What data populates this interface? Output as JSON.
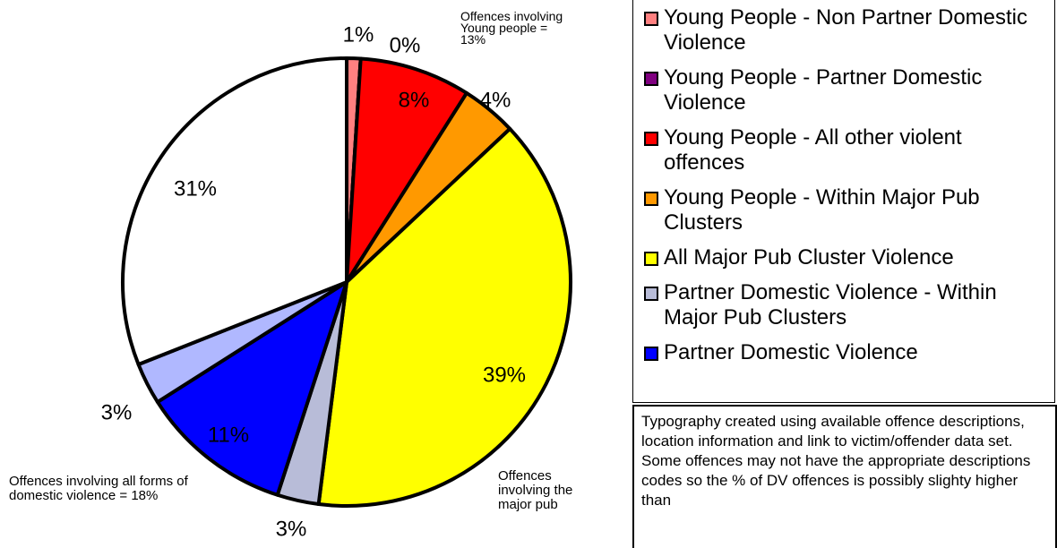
{
  "chart_data": {
    "type": "pie",
    "categories": [
      "Young People - Non Partner Domestic Violence",
      "Young People - Partner Domestic Violence",
      "Young People - All other violent offences",
      "Young People - Within Major Pub Clusters",
      "All Major Pub Cluster Violence",
      "Partner Domestic Violence - Within Major Pub Clusters",
      "Partner Domestic Violence",
      null,
      null
    ],
    "values": [
      1,
      0,
      8,
      4,
      39,
      3,
      11,
      3,
      31
    ],
    "value_labels": [
      "1%",
      "0%",
      "8%",
      "4%",
      "39%",
      "3%",
      "11%",
      "3%",
      "31%"
    ],
    "colors": [
      "#ff8080",
      "#800080",
      "#ff0000",
      "#ff9900",
      "#ffff00",
      "#b8bcd8",
      "#0000ff",
      "#b0b8ff",
      "#ffffff"
    ],
    "annotations": [
      "Offences involving Young people = 13%",
      "Offences involving all forms of domestic violence = 18%",
      "Offences involving the major pub"
    ],
    "note": "Typography created using available offence descriptions, location information and link to victim/offender data set.  Some offences may not have the appropriate descriptions codes so the % of DV offences is possibly slighty higher than"
  }
}
